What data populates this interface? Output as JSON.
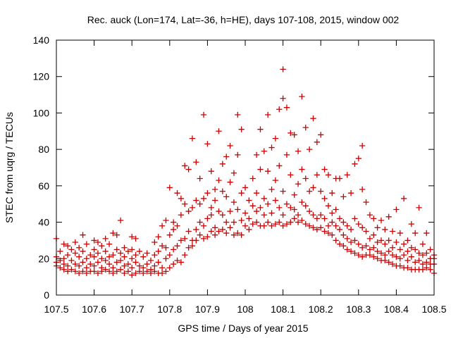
{
  "chart_data": {
    "type": "scatter",
    "title": "Rec. auck (Lon=174, Lat=-36, h=HE), days 107-108, 2015, window 002",
    "xlabel": "GPS time / Days of year 2015",
    "ylabel": "STEC from uqrg / TECUs",
    "xlim": [
      107.5,
      108.5
    ],
    "ylim": [
      0,
      140
    ],
    "x_ticks": [
      "107.5",
      "107.6",
      "107.7",
      "107.8",
      "107.9",
      "108",
      "108.1",
      "108.2",
      "108.3",
      "108.4",
      "108.5"
    ],
    "y_ticks": [
      "0",
      "20",
      "40",
      "60",
      "80",
      "100",
      "120",
      "140"
    ],
    "grid": false,
    "marker": "plus",
    "color": "#cc0000",
    "points": [
      [
        107.5,
        16
      ],
      [
        107.5,
        18
      ],
      [
        107.5,
        21
      ],
      [
        107.5,
        31
      ],
      [
        107.51,
        15
      ],
      [
        107.51,
        19
      ],
      [
        107.51,
        24
      ],
      [
        107.52,
        14
      ],
      [
        107.52,
        17
      ],
      [
        107.52,
        20
      ],
      [
        107.52,
        28
      ],
      [
        107.53,
        13
      ],
      [
        107.53,
        16
      ],
      [
        107.53,
        22
      ],
      [
        107.53,
        27
      ],
      [
        107.54,
        14
      ],
      [
        107.54,
        19
      ],
      [
        107.54,
        25
      ],
      [
        107.55,
        13
      ],
      [
        107.55,
        17
      ],
      [
        107.55,
        23
      ],
      [
        107.55,
        29
      ],
      [
        107.56,
        12
      ],
      [
        107.56,
        16
      ],
      [
        107.56,
        21
      ],
      [
        107.56,
        26
      ],
      [
        107.57,
        13
      ],
      [
        107.57,
        18
      ],
      [
        107.57,
        24
      ],
      [
        107.57,
        33
      ],
      [
        107.58,
        12
      ],
      [
        107.58,
        15
      ],
      [
        107.58,
        20
      ],
      [
        107.58,
        28
      ],
      [
        107.59,
        13
      ],
      [
        107.59,
        17
      ],
      [
        107.59,
        22
      ],
      [
        107.6,
        13
      ],
      [
        107.6,
        16
      ],
      [
        107.6,
        21
      ],
      [
        107.6,
        25
      ],
      [
        107.6,
        30
      ],
      [
        107.61,
        12
      ],
      [
        107.61,
        18
      ],
      [
        107.61,
        23
      ],
      [
        107.61,
        29
      ],
      [
        107.62,
        13
      ],
      [
        107.62,
        15
      ],
      [
        107.62,
        20
      ],
      [
        107.62,
        27
      ],
      [
        107.63,
        14
      ],
      [
        107.63,
        19
      ],
      [
        107.63,
        24
      ],
      [
        107.63,
        31
      ],
      [
        107.64,
        13
      ],
      [
        107.64,
        17
      ],
      [
        107.64,
        21
      ],
      [
        107.64,
        28
      ],
      [
        107.65,
        12
      ],
      [
        107.65,
        15
      ],
      [
        107.65,
        22
      ],
      [
        107.65,
        34
      ],
      [
        107.66,
        13
      ],
      [
        107.66,
        18
      ],
      [
        107.66,
        25
      ],
      [
        107.66,
        33
      ],
      [
        107.67,
        14
      ],
      [
        107.67,
        19
      ],
      [
        107.67,
        23
      ],
      [
        107.67,
        41
      ],
      [
        107.68,
        12
      ],
      [
        107.68,
        16
      ],
      [
        107.68,
        21
      ],
      [
        107.68,
        26
      ],
      [
        107.69,
        13
      ],
      [
        107.69,
        17
      ],
      [
        107.69,
        24
      ],
      [
        107.7,
        11
      ],
      [
        107.7,
        15
      ],
      [
        107.7,
        20
      ],
      [
        107.7,
        25
      ],
      [
        107.7,
        32
      ],
      [
        107.71,
        12
      ],
      [
        107.71,
        18
      ],
      [
        107.71,
        22
      ],
      [
        107.71,
        31
      ],
      [
        107.72,
        13
      ],
      [
        107.72,
        16
      ],
      [
        107.72,
        24
      ],
      [
        107.73,
        12
      ],
      [
        107.73,
        15
      ],
      [
        107.73,
        21
      ],
      [
        107.74,
        13
      ],
      [
        107.74,
        17
      ],
      [
        107.74,
        23
      ],
      [
        107.75,
        12
      ],
      [
        107.75,
        14
      ],
      [
        107.75,
        19
      ],
      [
        107.76,
        13
      ],
      [
        107.76,
        16
      ],
      [
        107.76,
        22
      ],
      [
        107.76,
        29
      ],
      [
        107.77,
        12
      ],
      [
        107.77,
        18
      ],
      [
        107.77,
        24
      ],
      [
        107.77,
        32
      ],
      [
        107.78,
        12
      ],
      [
        107.78,
        15
      ],
      [
        107.78,
        27
      ],
      [
        107.78,
        38
      ],
      [
        107.79,
        13
      ],
      [
        107.79,
        20
      ],
      [
        107.79,
        26
      ],
      [
        107.79,
        41
      ],
      [
        107.8,
        15
      ],
      [
        107.8,
        22
      ],
      [
        107.8,
        33
      ],
      [
        107.8,
        59
      ],
      [
        107.81,
        17
      ],
      [
        107.81,
        25
      ],
      [
        107.81,
        36
      ],
      [
        107.81,
        40
      ],
      [
        107.82,
        19
      ],
      [
        107.82,
        27
      ],
      [
        107.82,
        38
      ],
      [
        107.82,
        56
      ],
      [
        107.83,
        18
      ],
      [
        107.83,
        30
      ],
      [
        107.83,
        44
      ],
      [
        107.83,
        53
      ],
      [
        107.84,
        22
      ],
      [
        107.84,
        31
      ],
      [
        107.84,
        50
      ],
      [
        107.84,
        71
      ],
      [
        107.85,
        26
      ],
      [
        107.85,
        35
      ],
      [
        107.85,
        46
      ],
      [
        107.85,
        69
      ],
      [
        107.86,
        27
      ],
      [
        107.86,
        30
      ],
      [
        107.86,
        48
      ],
      [
        107.86,
        86
      ],
      [
        107.87,
        30
      ],
      [
        107.87,
        36
      ],
      [
        107.87,
        52
      ],
      [
        107.87,
        73
      ],
      [
        107.88,
        33
      ],
      [
        107.88,
        40
      ],
      [
        107.88,
        50
      ],
      [
        107.88,
        64
      ],
      [
        107.89,
        31
      ],
      [
        107.89,
        38
      ],
      [
        107.89,
        53
      ],
      [
        107.89,
        99
      ],
      [
        107.9,
        32
      ],
      [
        107.9,
        42
      ],
      [
        107.9,
        56
      ],
      [
        107.9,
        83
      ],
      [
        107.91,
        35
      ],
      [
        107.91,
        44
      ],
      [
        107.91,
        48
      ],
      [
        107.91,
        68
      ],
      [
        107.92,
        33
      ],
      [
        107.92,
        37
      ],
      [
        107.92,
        52
      ],
      [
        107.92,
        58
      ],
      [
        107.93,
        35
      ],
      [
        107.93,
        46
      ],
      [
        107.93,
        63
      ],
      [
        107.93,
        90
      ],
      [
        107.94,
        36
      ],
      [
        107.94,
        44
      ],
      [
        107.94,
        57
      ],
      [
        107.94,
        72
      ],
      [
        107.95,
        34
      ],
      [
        107.95,
        40
      ],
      [
        107.95,
        54
      ],
      [
        107.95,
        76
      ],
      [
        107.96,
        37
      ],
      [
        107.96,
        46
      ],
      [
        107.96,
        62
      ],
      [
        107.96,
        82
      ],
      [
        107.97,
        33
      ],
      [
        107.97,
        40
      ],
      [
        107.97,
        51
      ],
      [
        107.97,
        67
      ],
      [
        107.98,
        34
      ],
      [
        107.98,
        47
      ],
      [
        107.98,
        77
      ],
      [
        107.98,
        99
      ],
      [
        107.99,
        33
      ],
      [
        107.99,
        41
      ],
      [
        107.99,
        56
      ],
      [
        107.99,
        91
      ],
      [
        108,
        38
      ],
      [
        108,
        45
      ],
      [
        108,
        59
      ],
      [
        108.01,
        36
      ],
      [
        108.01,
        42
      ],
      [
        108.01,
        52
      ],
      [
        108.02,
        39
      ],
      [
        108.02,
        49
      ],
      [
        108.02,
        64
      ],
      [
        108.03,
        40
      ],
      [
        108.03,
        46
      ],
      [
        108.03,
        56
      ],
      [
        108.03,
        77
      ],
      [
        108.04,
        38
      ],
      [
        108.04,
        48
      ],
      [
        108.04,
        69
      ],
      [
        108.04,
        91
      ],
      [
        108.05,
        38
      ],
      [
        108.05,
        44
      ],
      [
        108.05,
        53
      ],
      [
        108.05,
        79
      ],
      [
        108.06,
        40
      ],
      [
        108.06,
        50
      ],
      [
        108.06,
        68
      ],
      [
        108.06,
        99
      ],
      [
        108.07,
        38
      ],
      [
        108.07,
        45
      ],
      [
        108.07,
        58
      ],
      [
        108.07,
        81
      ],
      [
        108.08,
        39
      ],
      [
        108.08,
        52
      ],
      [
        108.08,
        63
      ],
      [
        108.08,
        86
      ],
      [
        108.09,
        40
      ],
      [
        108.09,
        48
      ],
      [
        108.09,
        71
      ],
      [
        108.09,
        102
      ],
      [
        108.1,
        38
      ],
      [
        108.1,
        44
      ],
      [
        108.1,
        57
      ],
      [
        108.1,
        108
      ],
      [
        108.1,
        124
      ],
      [
        108.11,
        39
      ],
      [
        108.11,
        50
      ],
      [
        108.11,
        77
      ],
      [
        108.11,
        103
      ],
      [
        108.12,
        40
      ],
      [
        108.12,
        48
      ],
      [
        108.12,
        66
      ],
      [
        108.12,
        89
      ],
      [
        108.13,
        42
      ],
      [
        108.13,
        47
      ],
      [
        108.13,
        55
      ],
      [
        108.13,
        88
      ],
      [
        108.14,
        40
      ],
      [
        108.14,
        44
      ],
      [
        108.14,
        61
      ],
      [
        108.14,
        79
      ],
      [
        108.15,
        41
      ],
      [
        108.15,
        51
      ],
      [
        108.15,
        69
      ],
      [
        108.15,
        109
      ],
      [
        108.16,
        39
      ],
      [
        108.16,
        49
      ],
      [
        108.16,
        64
      ],
      [
        108.16,
        92
      ],
      [
        108.17,
        38
      ],
      [
        108.17,
        46
      ],
      [
        108.17,
        57
      ],
      [
        108.17,
        80
      ],
      [
        108.18,
        37
      ],
      [
        108.18,
        44
      ],
      [
        108.18,
        59
      ],
      [
        108.18,
        97
      ],
      [
        108.19,
        36
      ],
      [
        108.19,
        42
      ],
      [
        108.19,
        66
      ],
      [
        108.19,
        84
      ],
      [
        108.2,
        37
      ],
      [
        108.2,
        44
      ],
      [
        108.2,
        57
      ],
      [
        108.2,
        88
      ],
      [
        108.21,
        35
      ],
      [
        108.21,
        42
      ],
      [
        108.21,
        53
      ],
      [
        108.21,
        69
      ],
      [
        108.22,
        34
      ],
      [
        108.22,
        38
      ],
      [
        108.22,
        49
      ],
      [
        108.22,
        66
      ],
      [
        108.23,
        33
      ],
      [
        108.23,
        40
      ],
      [
        108.23,
        45
      ],
      [
        108.23,
        56
      ],
      [
        108.24,
        30
      ],
      [
        108.24,
        38
      ],
      [
        108.24,
        47
      ],
      [
        108.24,
        64
      ],
      [
        108.25,
        28
      ],
      [
        108.25,
        36
      ],
      [
        108.25,
        42
      ],
      [
        108.25,
        64
      ],
      [
        108.26,
        27
      ],
      [
        108.26,
        33
      ],
      [
        108.26,
        40
      ],
      [
        108.26,
        54
      ],
      [
        108.27,
        25
      ],
      [
        108.27,
        31
      ],
      [
        108.27,
        38
      ],
      [
        108.27,
        66
      ],
      [
        108.28,
        24
      ],
      [
        108.28,
        29
      ],
      [
        108.28,
        36
      ],
      [
        108.28,
        56
      ],
      [
        108.29,
        23
      ],
      [
        108.29,
        30
      ],
      [
        108.29,
        42
      ],
      [
        108.29,
        72
      ],
      [
        108.3,
        22
      ],
      [
        108.3,
        28
      ],
      [
        108.3,
        39
      ],
      [
        108.3,
        75
      ],
      [
        108.31,
        21
      ],
      [
        108.31,
        26
      ],
      [
        108.31,
        37
      ],
      [
        108.31,
        58
      ],
      [
        108.31,
        82
      ],
      [
        108.32,
        22
      ],
      [
        108.32,
        27
      ],
      [
        108.32,
        35
      ],
      [
        108.32,
        51
      ],
      [
        108.33,
        22
      ],
      [
        108.33,
        25
      ],
      [
        108.33,
        31
      ],
      [
        108.33,
        44
      ],
      [
        108.34,
        21
      ],
      [
        108.34,
        26
      ],
      [
        108.34,
        33
      ],
      [
        108.34,
        42
      ],
      [
        108.35,
        20
      ],
      [
        108.35,
        24
      ],
      [
        108.35,
        29
      ],
      [
        108.35,
        37
      ],
      [
        108.36,
        19
      ],
      [
        108.36,
        23
      ],
      [
        108.36,
        30
      ],
      [
        108.36,
        41
      ],
      [
        108.37,
        19
      ],
      [
        108.37,
        22
      ],
      [
        108.37,
        28
      ],
      [
        108.37,
        36
      ],
      [
        108.38,
        18
      ],
      [
        108.38,
        24
      ],
      [
        108.38,
        30
      ],
      [
        108.38,
        43
      ],
      [
        108.39,
        17
      ],
      [
        108.39,
        22
      ],
      [
        108.39,
        26
      ],
      [
        108.39,
        35
      ],
      [
        108.4,
        16
      ],
      [
        108.4,
        21
      ],
      [
        108.4,
        29
      ],
      [
        108.4,
        47
      ],
      [
        108.41,
        16
      ],
      [
        108.41,
        20
      ],
      [
        108.41,
        25
      ],
      [
        108.41,
        34
      ],
      [
        108.42,
        15
      ],
      [
        108.42,
        22
      ],
      [
        108.42,
        28
      ],
      [
        108.42,
        53
      ],
      [
        108.43,
        15
      ],
      [
        108.43,
        19
      ],
      [
        108.43,
        24
      ],
      [
        108.43,
        30
      ],
      [
        108.44,
        14
      ],
      [
        108.44,
        21
      ],
      [
        108.44,
        26
      ],
      [
        108.44,
        39
      ],
      [
        108.45,
        14
      ],
      [
        108.45,
        18
      ],
      [
        108.45,
        25
      ],
      [
        108.45,
        34
      ],
      [
        108.46,
        14
      ],
      [
        108.46,
        19
      ],
      [
        108.46,
        23
      ],
      [
        108.46,
        48
      ],
      [
        108.47,
        14
      ],
      [
        108.47,
        17
      ],
      [
        108.47,
        22
      ],
      [
        108.47,
        28
      ],
      [
        108.48,
        15
      ],
      [
        108.48,
        18
      ],
      [
        108.48,
        23
      ],
      [
        108.48,
        34
      ],
      [
        108.49,
        14
      ],
      [
        108.49,
        17
      ],
      [
        108.49,
        20
      ],
      [
        108.49,
        25
      ],
      [
        108.5,
        12
      ],
      [
        108.5,
        17
      ],
      [
        108.5,
        20
      ],
      [
        108.5,
        22
      ]
    ]
  }
}
